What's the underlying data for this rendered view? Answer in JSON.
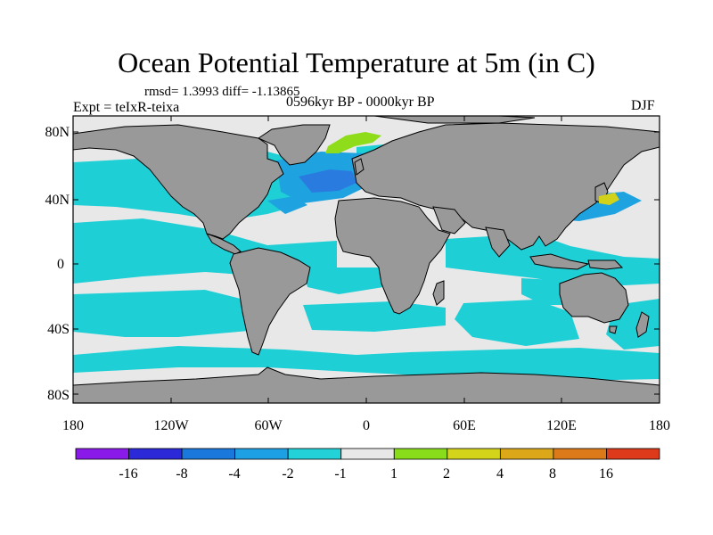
{
  "title": "Ocean Potential Temperature at 5m (in C)",
  "stats": "rmsd= 1.3993 diff= -1.13865",
  "experiment": "Expt = teIxR-teixa",
  "period": "0596kyr BP - 0000kyr BP",
  "season": "DJF",
  "axes": {
    "lat_labels": [
      "80N",
      "40N",
      "0",
      "40S",
      "80S"
    ],
    "lon_labels": [
      "180",
      "120W",
      "60W",
      "0",
      "60E",
      "120E",
      "180"
    ]
  },
  "colorbar": {
    "labels": [
      "-16",
      "-8",
      "-4",
      "-2",
      "-1",
      "1",
      "2",
      "4",
      "8",
      "16"
    ],
    "colors": [
      "#8a1ae8",
      "#2c2ad8",
      "#1a78dc",
      "#1ea0e4",
      "#22d2d8",
      "#e8e8e8",
      "#88dc1a",
      "#d4d41a",
      "#dca81a",
      "#dc7a1a",
      "#dc3a1a"
    ]
  },
  "map_colors": {
    "land": "#999999",
    "ocean_neutral": "#e8e8e8",
    "cool_1": "#1ecfd6",
    "cool_2": "#1ea3e0",
    "cool_3": "#2a7be0",
    "warm_1": "#8edc1a",
    "warm_2": "#d2d21a"
  }
}
